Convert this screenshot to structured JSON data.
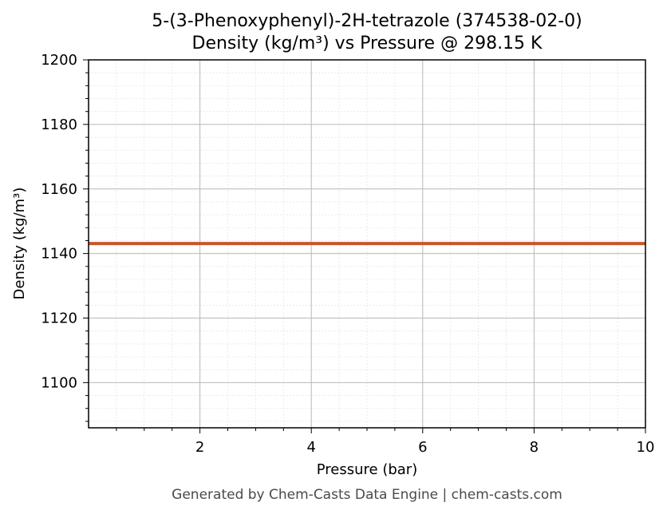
{
  "chart_data": {
    "type": "line",
    "title_line1": "5-(3-Phenoxyphenyl)-2H-tetrazole (374538-02-0)",
    "title_line2": "Density (kg/m³) vs Pressure @ 298.15 K",
    "xlabel": "Pressure (bar)",
    "ylabel": "Density (kg/m³)",
    "xlim": [
      0,
      10
    ],
    "ylim": [
      1086,
      1200
    ],
    "x_ticks": [
      2,
      4,
      6,
      8,
      10
    ],
    "y_ticks": [
      1100,
      1120,
      1140,
      1160,
      1180,
      1200
    ],
    "x_tick_labels": [
      "2",
      "4",
      "6",
      "8",
      "10"
    ],
    "y_tick_labels": [
      "1100",
      "1120",
      "1140",
      "1160",
      "1180",
      "1200"
    ],
    "grid": true,
    "series": [
      {
        "color": "#c8552b",
        "x": [
          0,
          10
        ],
        "y": [
          1143.1,
          1143.1
        ]
      }
    ]
  },
  "footer": "Generated by Chem-Casts Data Engine | chem-casts.com"
}
